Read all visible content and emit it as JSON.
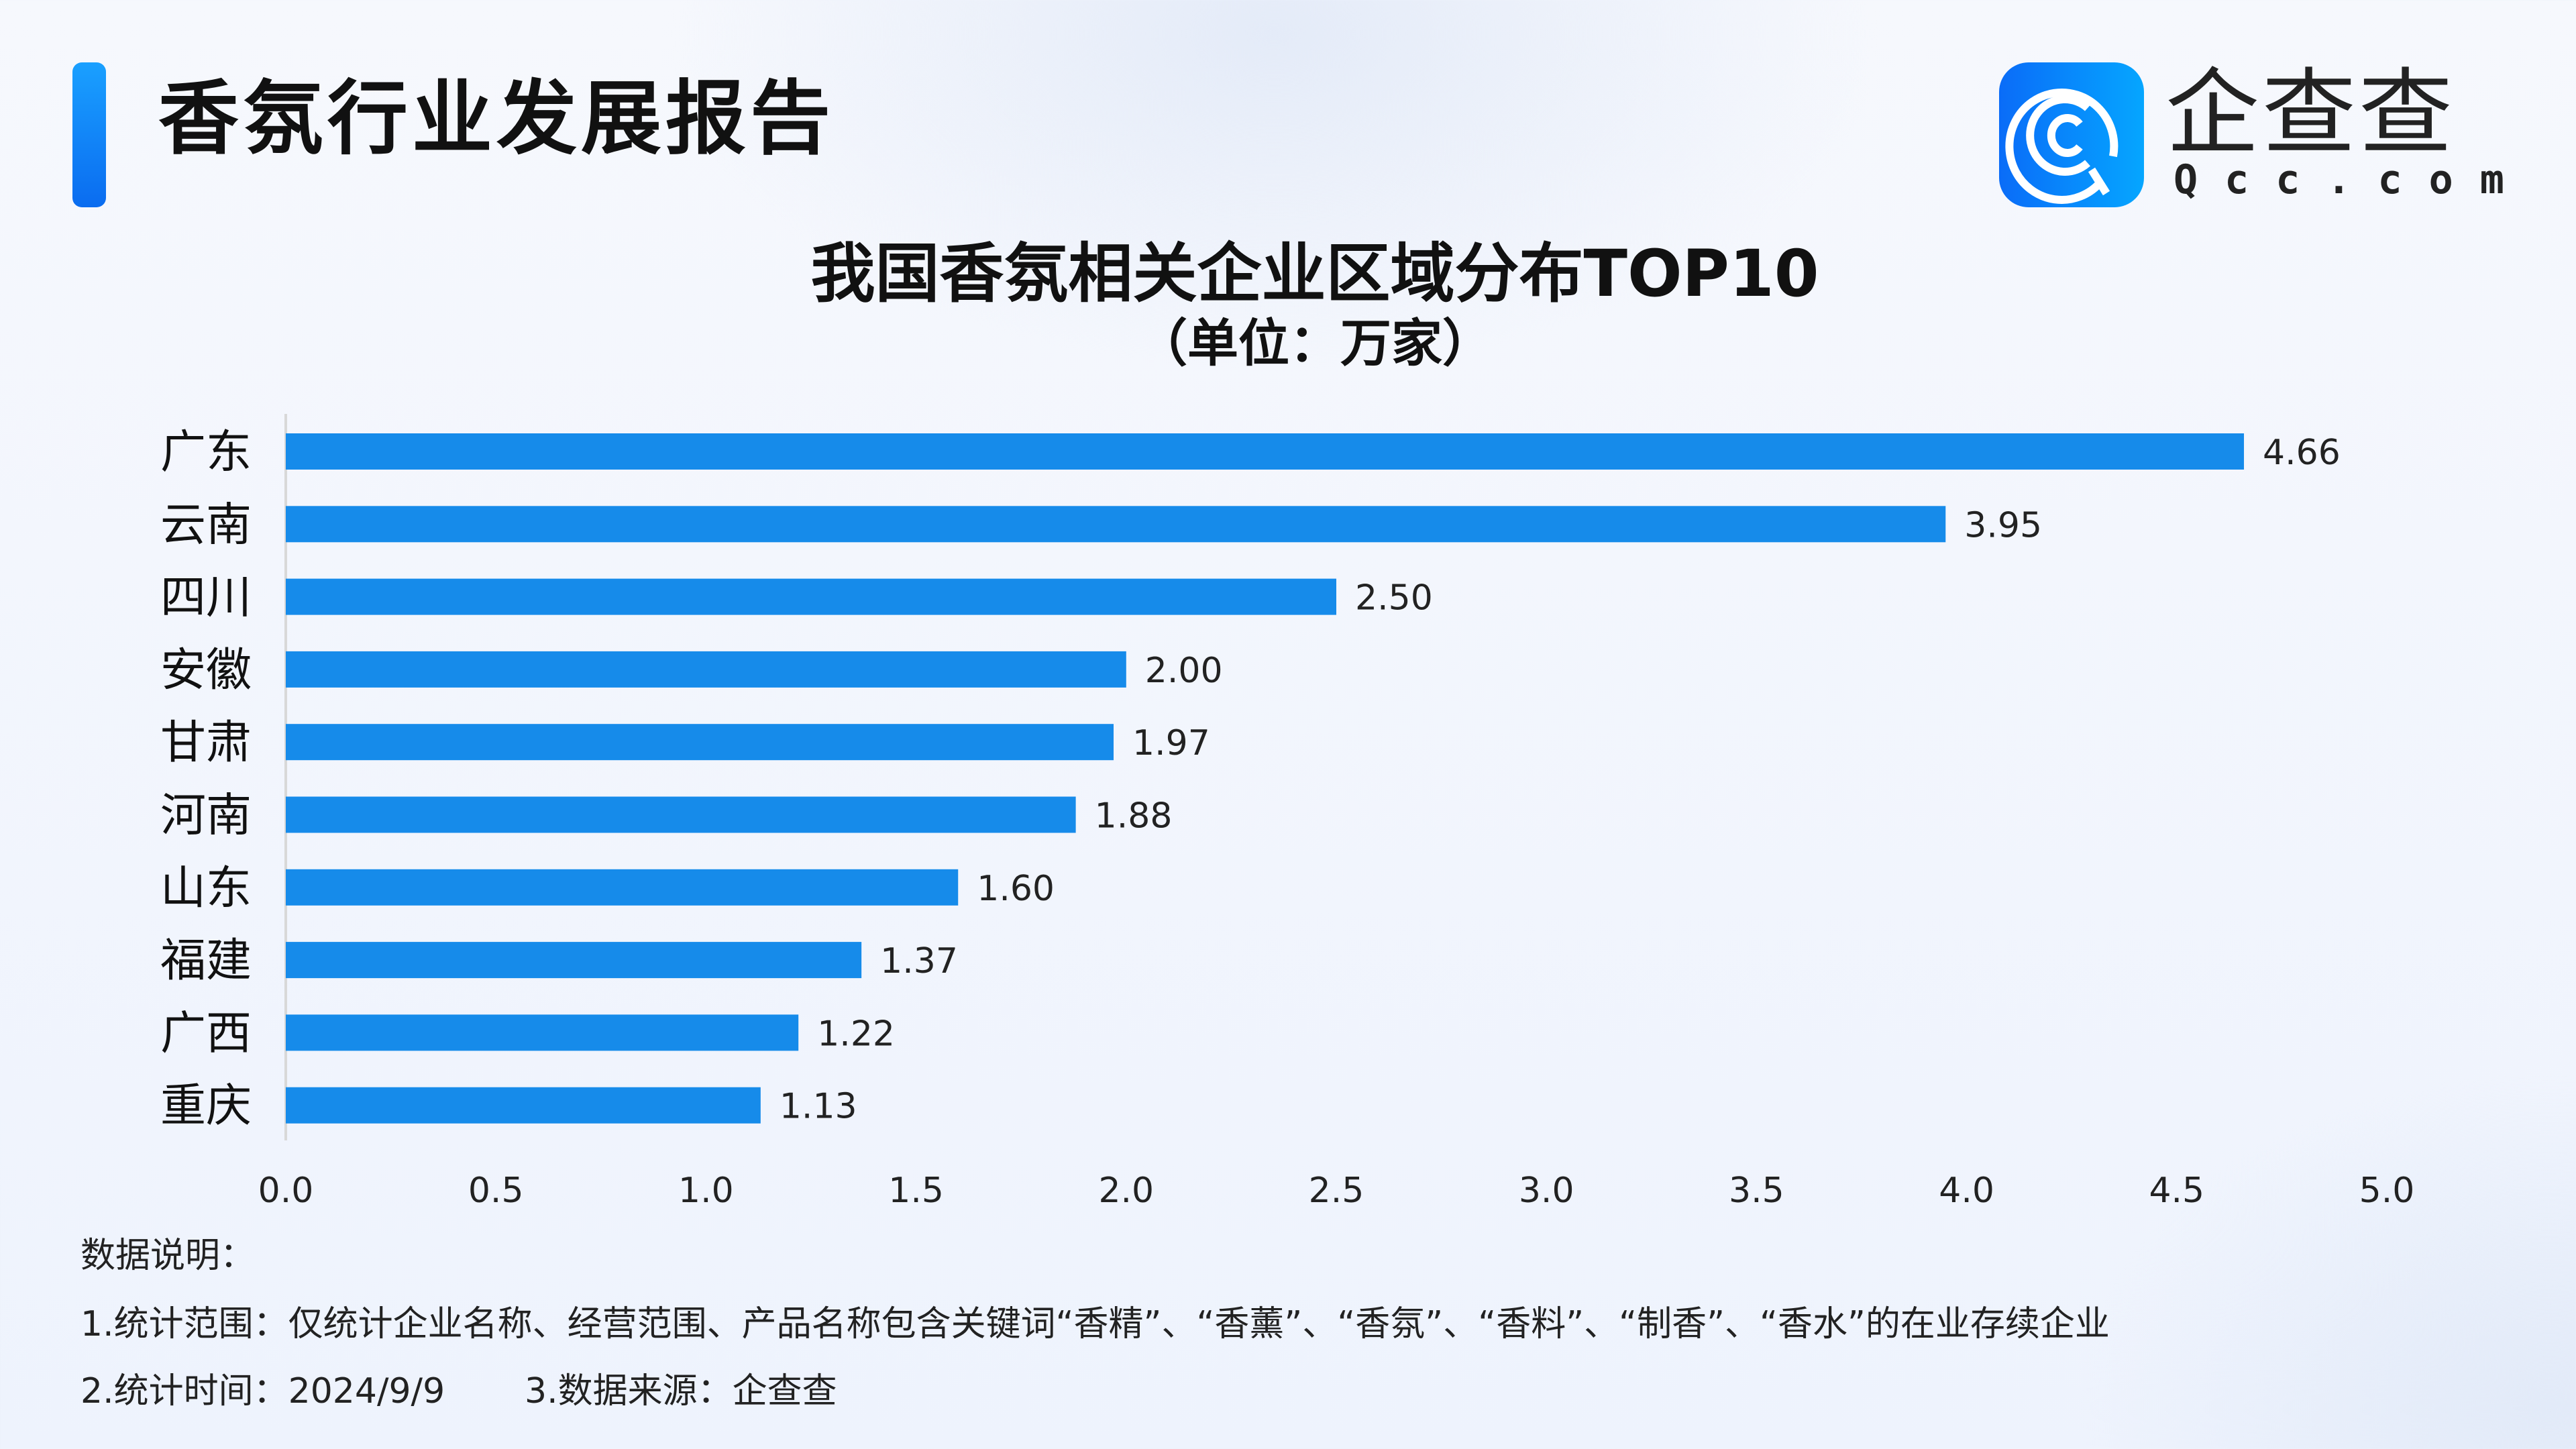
{
  "header": {
    "title": "香氛行业发展报告"
  },
  "logo": {
    "name_cn": "企查查",
    "name_en": "Qcc.com"
  },
  "chart_data": {
    "type": "bar",
    "orientation": "horizontal",
    "title": "我国香氛相关企业区域分布TOP10",
    "subtitle": "（单位：万家）",
    "categories": [
      "广东",
      "云南",
      "四川",
      "安徽",
      "甘肃",
      "河南",
      "山东",
      "福建",
      "广西",
      "重庆"
    ],
    "values": [
      4.66,
      3.95,
      2.5,
      2.0,
      1.97,
      1.88,
      1.6,
      1.37,
      1.22,
      1.13
    ],
    "value_labels": [
      "4.66",
      "3.95",
      "2.50",
      "2.00",
      "1.97",
      "1.88",
      "1.60",
      "1.37",
      "1.22",
      "1.13"
    ],
    "xlim": [
      0,
      5
    ],
    "xticks": [
      "0.0",
      "0.5",
      "1.0",
      "1.5",
      "2.0",
      "2.5",
      "3.0",
      "3.5",
      "4.0",
      "4.5",
      "5.0"
    ],
    "bar_color": "#168bea",
    "grid": false
  },
  "notes": {
    "heading": "数据说明：",
    "line1": "1.统计范围：仅统计企业名称、经营范围、产品名称包含关键词“香精”、“香薰”、“香氛”、“香料”、“制香”、“香水”的在业存续企业",
    "line2a": "2.统计时间：2024/9/9",
    "line2b": "3.数据来源：企查查"
  }
}
